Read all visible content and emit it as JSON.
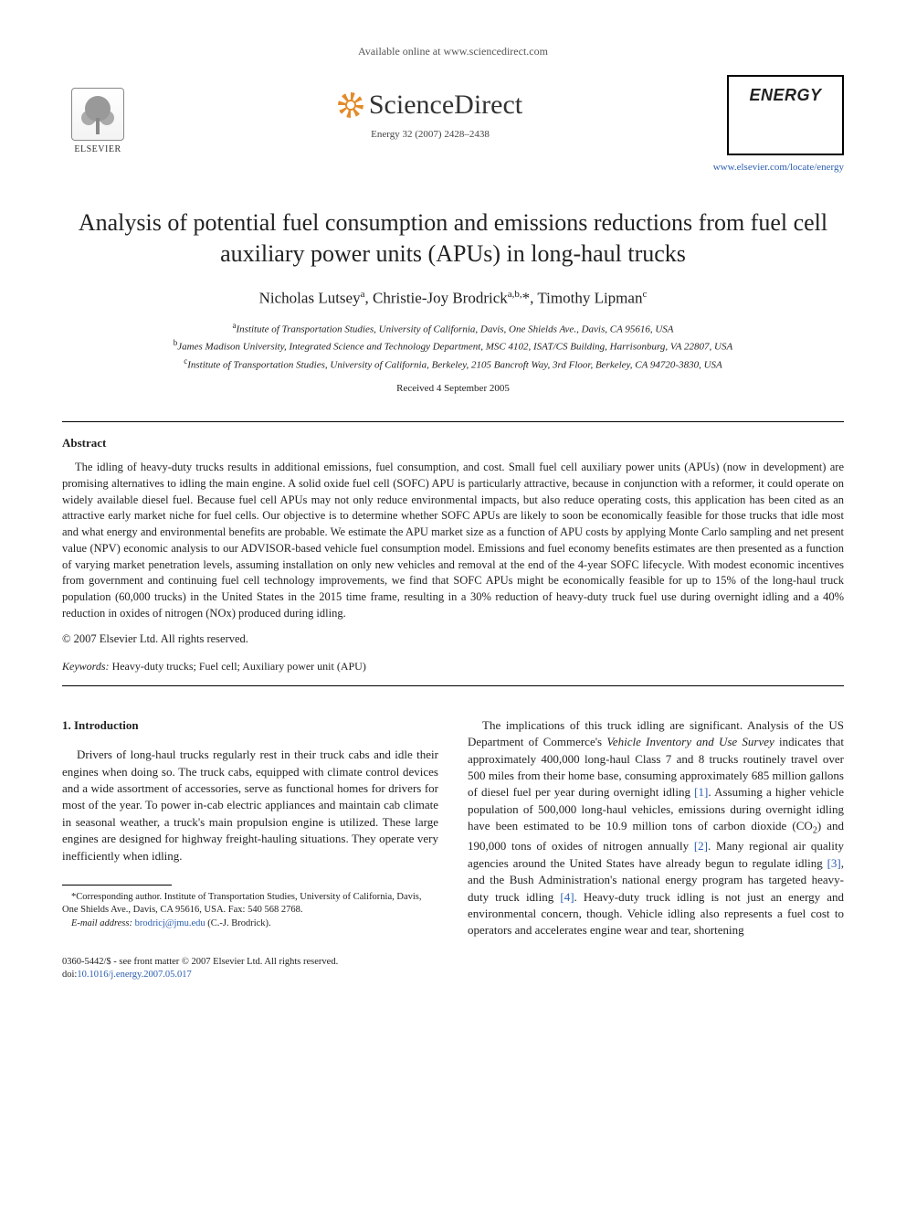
{
  "header": {
    "available_text": "Available online at www.sciencedirect.com",
    "sd_url": "www.sciencedirect.com",
    "sd_brand": "ScienceDirect",
    "elsevier_label": "ELSEVIER",
    "journal_name": "ENERGY",
    "citation": "Energy 32 (2007) 2428–2438",
    "journal_url": "www.elsevier.com/locate/energy"
  },
  "article": {
    "title": "Analysis of potential fuel consumption and emissions reductions from fuel cell auxiliary power units (APUs) in long-haul trucks",
    "authors_html": "Nicholas Lutsey<sup>a</sup>, Christie-Joy Brodrick<sup>a,b,</sup>*, Timothy Lipman<sup>c</sup>",
    "affiliations": {
      "a": "Institute of Transportation Studies, University of California, Davis, One Shields Ave., Davis, CA 95616, USA",
      "b": "James Madison University, Integrated Science and Technology Department, MSC 4102, ISAT/CS Building, Harrisonburg, VA 22807, USA",
      "c": "Institute of Transportation Studies, University of California, Berkeley, 2105 Bancroft Way, 3rd Floor, Berkeley, CA 94720-3830, USA"
    },
    "received": "Received 4 September 2005"
  },
  "abstract": {
    "heading": "Abstract",
    "body": "The idling of heavy-duty trucks results in additional emissions, fuel consumption, and cost. Small fuel cell auxiliary power units (APUs) (now in development) are promising alternatives to idling the main engine. A solid oxide fuel cell (SOFC) APU is particularly attractive, because in conjunction with a reformer, it could operate on widely available diesel fuel. Because fuel cell APUs may not only reduce environmental impacts, but also reduce operating costs, this application has been cited as an attractive early market niche for fuel cells. Our objective is to determine whether SOFC APUs are likely to soon be economically feasible for those trucks that idle most and what energy and environmental benefits are probable. We estimate the APU market size as a function of APU costs by applying Monte Carlo sampling and net present value (NPV) economic analysis to our ADVISOR-based vehicle fuel consumption model. Emissions and fuel economy benefits estimates are then presented as a function of varying market penetration levels, assuming installation on only new vehicles and removal at the end of the 4-year SOFC lifecycle. With modest economic incentives from government and continuing fuel cell technology improvements, we find that SOFC APUs might be economically feasible for up to 15% of the long-haul truck population (60,000 trucks) in the United States in the 2015 time frame, resulting in a 30% reduction of heavy-duty truck fuel use during overnight idling and a 40% reduction in oxides of nitrogen (NOx) produced during idling.",
    "copyright": "© 2007 Elsevier Ltd. All rights reserved."
  },
  "keywords": {
    "label": "Keywords:",
    "list": "Heavy-duty trucks; Fuel cell; Auxiliary power unit (APU)"
  },
  "section1": {
    "heading": "1. Introduction",
    "col_left_p1": "Drivers of long-haul trucks regularly rest in their truck cabs and idle their engines when doing so. The truck cabs, equipped with climate control devices and a wide assortment of accessories, serve as functional homes for drivers for most of the year. To power in-cab electric appliances and maintain cab climate in seasonal weather, a truck's main propulsion engine is utilized. These large engines are designed for highway freight-hauling situations. They operate very inefficiently when idling.",
    "col_right_p1_a": "The implications of this truck idling are significant. Analysis of the US Department of Commerce's ",
    "col_right_p1_survey": "Vehicle Inventory and Use Survey",
    "col_right_p1_b": " indicates that approximately 400,000 long-haul Class 7 and 8 trucks routinely travel over 500 miles from their home base, consuming approximately 685 million gallons of diesel fuel per year during overnight idling ",
    "ref1": "[1]",
    "col_right_p1_c": ". Assuming a higher vehicle population of 500,000 long-haul vehicles, emissions during overnight idling have been estimated to be 10.9 million tons of carbon dioxide (CO",
    "sub2": "2",
    "col_right_p1_d": ") and 190,000 tons of oxides of nitrogen annually ",
    "ref2": "[2]",
    "col_right_p1_e": ". Many regional air quality agencies around the United States have already begun to regulate idling ",
    "ref3": "[3]",
    "col_right_p1_f": ", and the Bush Administration's national energy program has targeted heavy-duty truck idling ",
    "ref4": "[4]",
    "col_right_p1_g": ". Heavy-duty truck idling is not just an energy and environmental concern, though. Vehicle idling also represents a fuel cost to operators and accelerates engine wear and tear, shortening"
  },
  "footnote": {
    "corresponding": "*Corresponding author. Institute of Transportation Studies, University of California, Davis, One Shields Ave., Davis, CA 95616, USA. Fax: 540 568 2768.",
    "email_label": "E-mail address:",
    "email": "brodricj@jmu.edu",
    "email_attribution": "(C.-J. Brodrick)."
  },
  "footer": {
    "left": "0360-5442/$ - see front matter © 2007 Elsevier Ltd. All rights reserved.",
    "doi_label": "doi:",
    "doi": "10.1016/j.energy.2007.05.017"
  },
  "colors": {
    "link": "#2a5db0",
    "text": "#222222",
    "sd_orange": "#e38b2a"
  }
}
